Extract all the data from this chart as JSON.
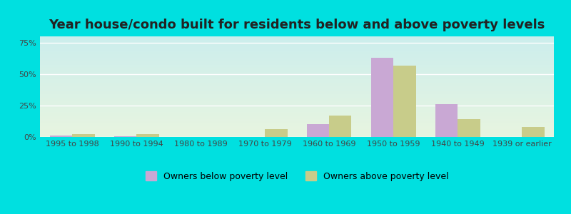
{
  "title": "Year house/condo built for residents below and above poverty levels",
  "categories": [
    "1995 to 1998",
    "1990 to 1994",
    "1980 to 1989",
    "1970 to 1979",
    "1960 to 1969",
    "1950 to 1959",
    "1940 to 1949",
    "1939 or earlier"
  ],
  "below_poverty": [
    1.0,
    0.5,
    0.0,
    0.0,
    10.0,
    63.0,
    26.0,
    0.0
  ],
  "above_poverty": [
    2.0,
    2.0,
    0.0,
    6.0,
    17.0,
    57.0,
    14.0,
    8.0
  ],
  "below_color": "#c9a8d4",
  "above_color": "#c8cc8a",
  "bar_width": 0.35,
  "ylim": [
    0,
    80
  ],
  "yticks": [
    0,
    25,
    50,
    75
  ],
  "ytick_labels": [
    "0%",
    "25%",
    "50%",
    "75%"
  ],
  "legend_below": "Owners below poverty level",
  "legend_above": "Owners above poverty level",
  "bg_color_top": "#cceeed",
  "bg_color_bottom": "#e8f5e0",
  "outer_bg": "#00e0e0",
  "title_fontsize": 13,
  "tick_fontsize": 8,
  "legend_fontsize": 9
}
